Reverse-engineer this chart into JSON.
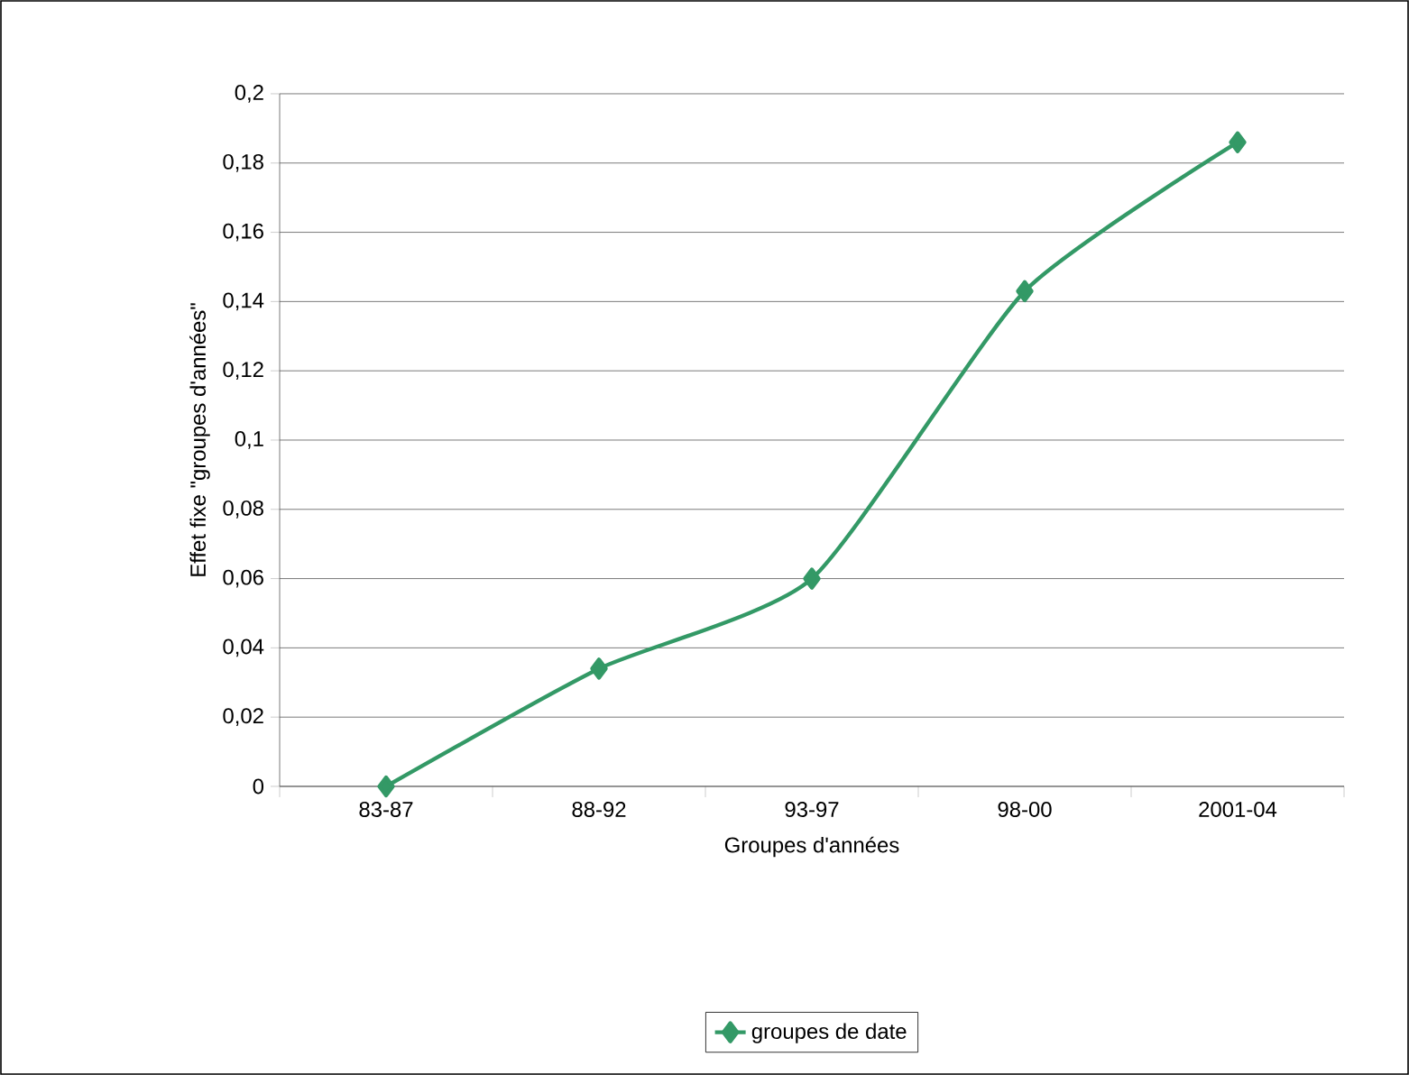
{
  "chart_data": {
    "type": "line",
    "xlabel": "Groupes d'années",
    "ylabel": "Effet fixe \"groupes d'années\"",
    "categories": [
      "83-87",
      "88-92",
      "93-97",
      "98-00",
      "2001-04"
    ],
    "series": [
      {
        "name": "groupes de date",
        "color": "#339966",
        "values": [
          0,
          0.034,
          0.06,
          0.143,
          0.186
        ]
      }
    ],
    "ylim": [
      0,
      0.2
    ],
    "yticks": [
      0,
      {
        "value": 0.02,
        "label": "0,02"
      },
      {
        "value": 0.04,
        "label": "0,04"
      },
      {
        "value": 0.06,
        "label": "0,06"
      },
      {
        "value": 0.08,
        "label": "0,08"
      },
      {
        "value": 0.1,
        "label": "0,1"
      },
      {
        "value": 0.12,
        "label": "0,12"
      },
      {
        "value": 0.14,
        "label": "0,14"
      },
      {
        "value": 0.16,
        "label": "0,16"
      },
      {
        "value": 0.18,
        "label": "0,18"
      },
      {
        "value": 0.2,
        "label": "0,2"
      }
    ],
    "grid": "y",
    "legend": "bottom",
    "marker": "diamond",
    "line_style": "solid"
  }
}
